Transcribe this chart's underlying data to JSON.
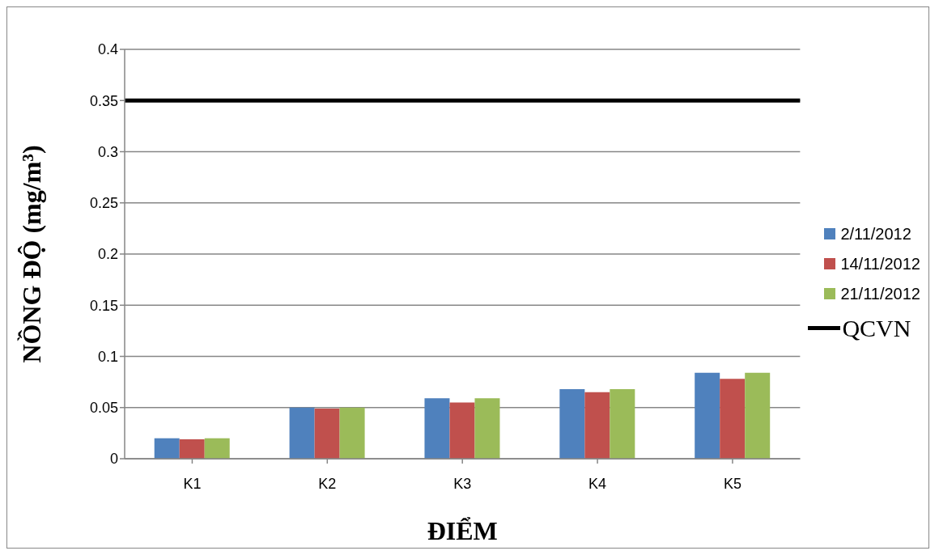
{
  "chart_data": {
    "type": "bar",
    "xlabel": "ĐIỂM",
    "ylabel": "NỒNG ĐỘ (mg/m³)",
    "categories": [
      "K1",
      "K2",
      "K3",
      "K4",
      "K5"
    ],
    "series": [
      {
        "name": "2/11/2012",
        "color": "#4f81bd",
        "values": [
          0.02,
          0.05,
          0.059,
          0.068,
          0.084
        ]
      },
      {
        "name": "14/11/2012",
        "color": "#c0504d",
        "values": [
          0.019,
          0.049,
          0.055,
          0.065,
          0.078
        ]
      },
      {
        "name": "21/11/2012",
        "color": "#9bbb59",
        "values": [
          0.02,
          0.05,
          0.059,
          0.068,
          0.084
        ]
      }
    ],
    "ylim": [
      0,
      0.4
    ],
    "yticks": [
      0,
      0.05,
      0.1,
      0.15,
      0.2,
      0.25,
      0.3,
      0.35,
      0.4
    ],
    "grid": "y",
    "legend": "right",
    "ref_lines": [
      {
        "axis": "y",
        "value": 0.35,
        "label": "QCVN",
        "color": "#000000"
      }
    ]
  }
}
